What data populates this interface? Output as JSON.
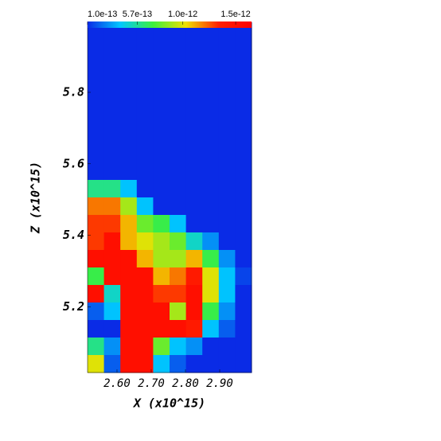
{
  "chart_data": {
    "type": "heatmap",
    "xlabel": "X (x10^15)",
    "ylabel": "Z (x10^15)",
    "xlim": [
      2.514,
      2.993
    ],
    "ylim": [
      5.016,
      5.996
    ],
    "xticks": [
      {
        "value": 2.6,
        "label": "2.60"
      },
      {
        "value": 2.7,
        "label": "2.70"
      },
      {
        "value": 2.8,
        "label": "2.80"
      },
      {
        "value": 2.9,
        "label": "2.90"
      }
    ],
    "yticks": [
      5.2,
      5.4,
      5.6,
      5.8
    ],
    "clim": [
      1e-13,
      1.65e-12
    ],
    "cticks": [
      {
        "value": 1e-13,
        "label": "1.0e-13"
      },
      {
        "value": 5.7e-13,
        "label": "5.7e-13"
      },
      {
        "value": 1e-12,
        "label": "1.0e-12"
      },
      {
        "value": 1.5e-12,
        "label": "1.5e-12"
      }
    ],
    "colormap": [
      "#0a2be6",
      "#00c8ff",
      "#3cf03c",
      "#f0e000",
      "#ff2000",
      "#ff0000"
    ],
    "z": [
      [
        1e-13,
        1e-13,
        1e-13,
        1e-13,
        1e-13,
        1e-13,
        1e-13,
        1e-13,
        1e-13,
        1e-13
      ],
      [
        1e-13,
        1e-13,
        1e-13,
        1e-13,
        1e-13,
        1e-13,
        1e-13,
        1e-13,
        1e-13,
        1e-13
      ],
      [
        1e-13,
        1e-13,
        1e-13,
        1e-13,
        1e-13,
        1e-13,
        1e-13,
        1e-13,
        1e-13,
        1e-13
      ],
      [
        1e-13,
        1e-13,
        1e-13,
        1e-13,
        1e-13,
        1e-13,
        1e-13,
        1e-13,
        1e-13,
        1e-13
      ],
      [
        1e-13,
        1e-13,
        1e-13,
        1e-13,
        1e-13,
        1e-13,
        1e-13,
        1e-13,
        1e-13,
        1e-13
      ],
      [
        1e-13,
        1e-13,
        1e-13,
        1e-13,
        1e-13,
        1e-13,
        1e-13,
        1e-13,
        1e-13,
        1e-13
      ],
      [
        1e-13,
        1e-13,
        1e-13,
        1e-13,
        1e-13,
        1e-13,
        1e-13,
        1e-13,
        1e-13,
        1e-13
      ],
      [
        1e-13,
        1e-13,
        1e-13,
        1e-13,
        1e-13,
        1e-13,
        1e-13,
        1e-13,
        1e-13,
        1e-13
      ],
      [
        1e-13,
        1e-13,
        1e-13,
        1e-13,
        1e-13,
        1e-13,
        1e-13,
        1e-13,
        1e-13,
        1e-13
      ],
      [
        6e-13,
        6e-13,
        4e-13,
        1e-13,
        1e-13,
        1e-13,
        1e-13,
        1e-13,
        1e-13,
        1e-13
      ],
      [
        1.2e-12,
        1.2e-12,
        9e-13,
        4e-13,
        1e-13,
        1e-13,
        1e-13,
        1e-13,
        1e-13,
        1e-13
      ],
      [
        1.3e-12,
        1.3e-12,
        1.1e-12,
        8e-13,
        7e-13,
        4e-13,
        1e-13,
        1e-13,
        1e-13,
        1e-13
      ],
      [
        1.3e-12,
        1.5e-12,
        1.1e-12,
        1e-12,
        9e-13,
        8e-13,
        5e-13,
        3e-13,
        1e-13,
        1e-13
      ],
      [
        1.5e-12,
        1.5e-12,
        1.5e-12,
        1.1e-12,
        9e-13,
        9e-13,
        1.1e-12,
        7e-13,
        3e-13,
        1e-13
      ],
      [
        7e-13,
        1.5e-12,
        1.5e-12,
        1.5e-12,
        1.1e-12,
        1.2e-12,
        1.4e-12,
        1e-12,
        4e-13,
        1.5e-13
      ],
      [
        1.5e-12,
        5e-13,
        1.5e-12,
        1.5e-12,
        1.3e-12,
        1.3e-12,
        1.5e-12,
        1e-12,
        4e-13,
        1e-13
      ],
      [
        2e-13,
        4e-13,
        1.5e-12,
        1.5e-12,
        1.5e-12,
        9e-13,
        1.5e-12,
        7e-13,
        3e-13,
        1e-13
      ],
      [
        1e-13,
        1e-13,
        1.5e-12,
        1.5e-12,
        1.5e-12,
        1.5e-12,
        1.4e-12,
        4e-13,
        2e-13,
        1e-13
      ],
      [
        6e-13,
        3e-13,
        1.5e-12,
        1.5e-12,
        8e-13,
        4e-13,
        3e-13,
        1e-13,
        1e-13,
        1e-13
      ],
      [
        1e-12,
        2e-13,
        1.5e-12,
        1.5e-12,
        4e-13,
        2e-13,
        1e-13,
        1e-13,
        1e-13,
        1e-13
      ]
    ]
  }
}
